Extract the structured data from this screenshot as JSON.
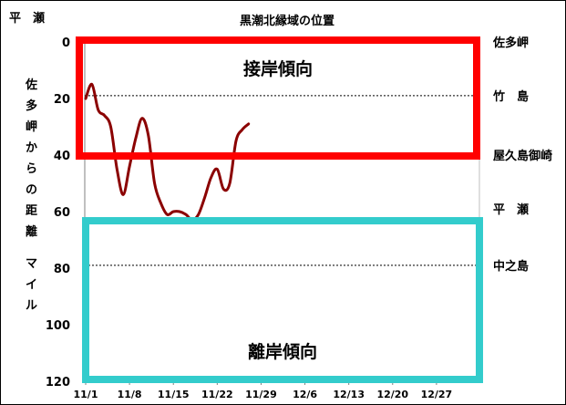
{
  "chart_data": {
    "type": "line",
    "title": "黒潮北縁域の位置",
    "corner_label": "平　瀬",
    "ylabel": "佐多岬からの距離　マイル",
    "ylim": [
      0,
      120
    ],
    "y_ticks": [
      0,
      20,
      40,
      60,
      80,
      100,
      120
    ],
    "x_ticks": [
      "11/1",
      "11/8",
      "11/15",
      "11/22",
      "11/29",
      "12/6",
      "12/13",
      "12/20",
      "12/27"
    ],
    "reference_points": [
      {
        "label": "佐多岬",
        "value": 0
      },
      {
        "label": "竹　島",
        "value": 19
      },
      {
        "label": "屋久島御崎",
        "value": 40
      },
      {
        "label": "平　瀬",
        "value": 59
      },
      {
        "label": "中之島",
        "value": 79
      }
    ],
    "dashed_reference_lines": [
      19,
      79
    ],
    "regions": [
      {
        "label": "接岸傾向",
        "color": "#ff0000",
        "from": 0,
        "to": 40
      },
      {
        "label": "離岸傾向",
        "color": "#33cccc",
        "from": 60,
        "to": 120
      }
    ],
    "series": [
      {
        "color": "#8b0000",
        "points": [
          {
            "x": 0,
            "y": 20
          },
          {
            "x": 1,
            "y": 15
          },
          {
            "x": 2,
            "y": 24
          },
          {
            "x": 3,
            "y": 26
          },
          {
            "x": 4,
            "y": 30
          },
          {
            "x": 5,
            "y": 45
          },
          {
            "x": 6,
            "y": 54
          },
          {
            "x": 7,
            "y": 44
          },
          {
            "x": 8,
            "y": 34
          },
          {
            "x": 9,
            "y": 27
          },
          {
            "x": 10,
            "y": 33
          },
          {
            "x": 11,
            "y": 50
          },
          {
            "x": 12,
            "y": 57
          },
          {
            "x": 13,
            "y": 61
          },
          {
            "x": 14,
            "y": 60
          },
          {
            "x": 15,
            "y": 60
          },
          {
            "x": 16,
            "y": 61
          },
          {
            "x": 17,
            "y": 63
          },
          {
            "x": 18,
            "y": 61
          },
          {
            "x": 19,
            "y": 55
          },
          {
            "x": 20,
            "y": 48
          },
          {
            "x": 21,
            "y": 45
          },
          {
            "x": 22,
            "y": 52
          },
          {
            "x": 23,
            "y": 50
          },
          {
            "x": 24,
            "y": 35
          },
          {
            "x": 25,
            "y": 31
          },
          {
            "x": 26,
            "y": 29
          }
        ]
      }
    ]
  }
}
